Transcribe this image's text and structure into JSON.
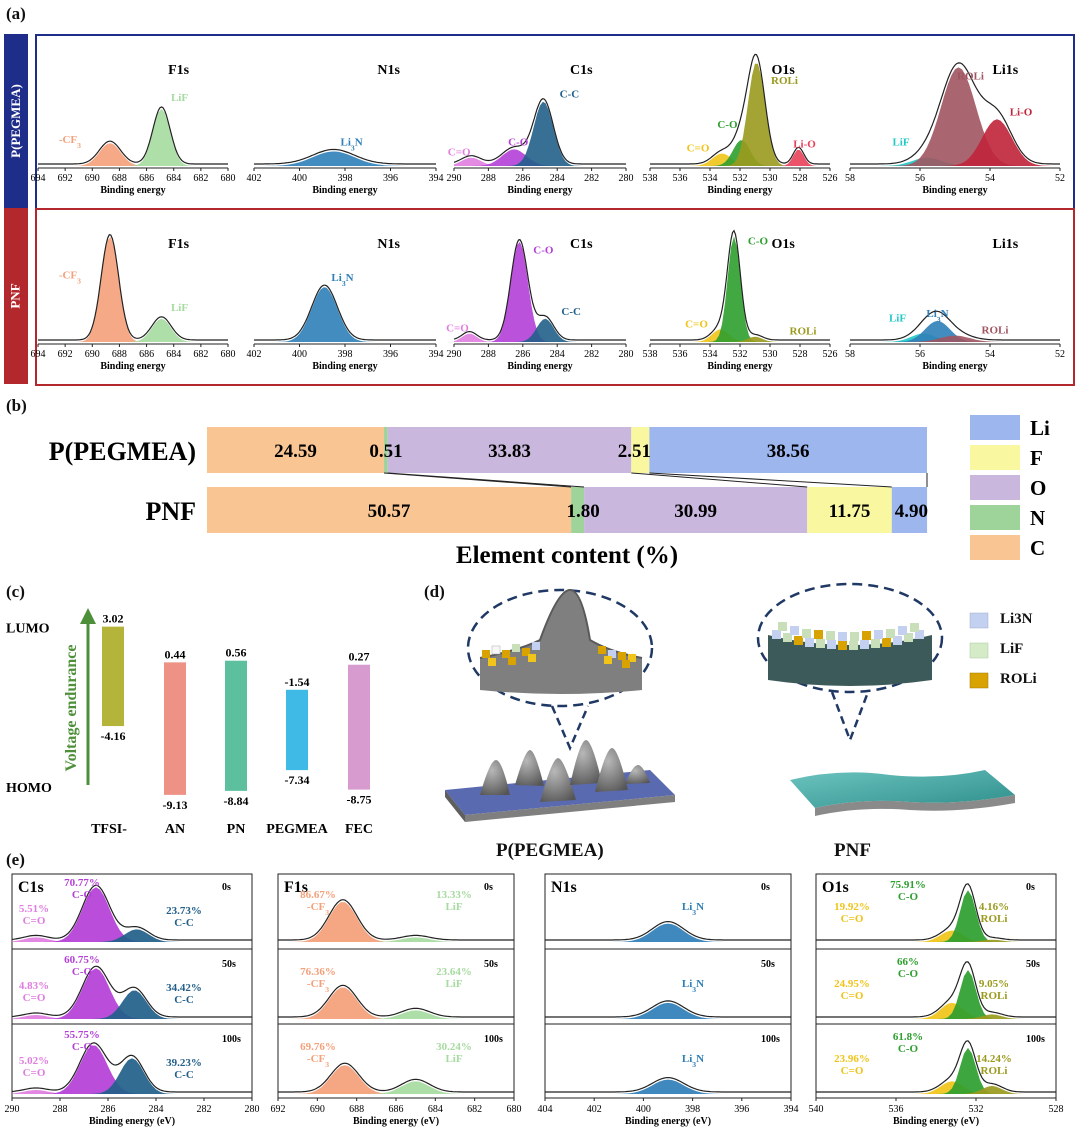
{
  "panels": {
    "a": "(a)",
    "b": "(b)",
    "c": "(c)",
    "d": "(d)",
    "e": "(e)"
  },
  "colors": {
    "blue_frame": "#1f2d8a",
    "red_frame": "#b3282d",
    "cf3": "#f4a07a",
    "lif": "#a6dba0",
    "li3n": "#2f7fb8",
    "c_eq_o": "#e07ee0",
    "c_o": "#b43fd8",
    "c_c": "#215f8a",
    "o_c_o": "#2e9e2e",
    "o_c_eq_o": "#f0c419",
    "o_roli": "#9a9a1e",
    "o_li_o": "#e8405a",
    "li_roli": "#a05560",
    "li_lio": "#c0243a",
    "li_lif": "#20c8c8",
    "c_c_1": "#f5a623",
    "bar_li": "#9db6ee",
    "bar_f": "#f9f7a0",
    "bar_o": "#c9b7dd",
    "bar_n": "#9ed39a",
    "bar_c": "#f9c593"
  },
  "chart_data": [
    {
      "panel": "a",
      "type": "xps",
      "rows": [
        {
          "name": "P(PEGMEA)",
          "spectra": [
            {
              "title": "F1s",
              "xlabel": "Binding energy",
              "ticks": [
                694,
                692,
                690,
                688,
                686,
                684,
                682,
                680
              ],
              "peaks": [
                {
                  "label": "-CF3",
                  "center": 688.7,
                  "height": 0.22,
                  "width": 1.1
                },
                {
                  "label": "LiF",
                  "center": 684.9,
                  "height": 0.55,
                  "width": 0.9
                }
              ]
            },
            {
              "title": "N1s",
              "xlabel": "Binding energy",
              "ticks": [
                402,
                400,
                398,
                396,
                394
              ],
              "peaks": [
                {
                  "label": "Li3N",
                  "center": 398.5,
                  "height": 0.14,
                  "width": 1.3
                }
              ]
            },
            {
              "title": "C1s",
              "xlabel": "Binding energy",
              "ticks": [
                290,
                288,
                286,
                284,
                282,
                280
              ],
              "peaks": [
                {
                  "label": "C=O",
                  "center": 289.0,
                  "height": 0.08,
                  "width": 0.8
                },
                {
                  "label": "C-O",
                  "center": 286.5,
                  "height": 0.16,
                  "width": 1.0
                },
                {
                  "label": "C-C",
                  "center": 284.8,
                  "height": 0.62,
                  "width": 0.8
                }
              ]
            },
            {
              "title": "O1s",
              "xlabel": "Binding energy",
              "ticks": [
                538,
                536,
                534,
                532,
                530,
                528,
                526
              ],
              "peaks": [
                {
                  "label": "C=O",
                  "center": 533.2,
                  "height": 0.12,
                  "width": 0.9
                },
                {
                  "label": "C-O",
                  "center": 531.9,
                  "height": 0.25,
                  "width": 0.8
                },
                {
                  "label": "ROLi",
                  "center": 530.9,
                  "height": 1.0,
                  "width": 0.8
                },
                {
                  "label": "Li-O",
                  "center": 528.1,
                  "height": 0.16,
                  "width": 0.5
                }
              ]
            },
            {
              "title": "Li1s",
              "xlabel": "Binding energy",
              "ticks": [
                58,
                56,
                54,
                52
              ],
              "peaks": [
                {
                  "label": "LiF",
                  "center": 55.8,
                  "height": 0.08,
                  "width": 0.6
                },
                {
                  "label": "ROLi",
                  "center": 54.9,
                  "height": 0.95,
                  "width": 0.7
                },
                {
                  "label": "Li-O",
                  "center": 53.8,
                  "height": 0.45,
                  "width": 0.6
                }
              ]
            }
          ]
        },
        {
          "name": "PNF",
          "spectra": [
            {
              "title": "F1s",
              "xlabel": "Binding energy",
              "ticks": [
                694,
                692,
                690,
                688,
                686,
                684,
                682,
                680
              ],
              "peaks": [
                {
                  "label": "-CF3",
                  "center": 688.7,
                  "height": 1.0,
                  "width": 0.9
                },
                {
                  "label": "LiF",
                  "center": 684.9,
                  "height": 0.22,
                  "width": 1.0
                }
              ]
            },
            {
              "title": "N1s",
              "xlabel": "Binding energy",
              "ticks": [
                402,
                400,
                398,
                396,
                394
              ],
              "peaks": [
                {
                  "label": "Li3N",
                  "center": 398.9,
                  "height": 0.52,
                  "width": 0.8
                }
              ]
            },
            {
              "title": "C1s",
              "xlabel": "Binding energy",
              "ticks": [
                290,
                288,
                286,
                284,
                282,
                280
              ],
              "peaks": [
                {
                  "label": "C=O",
                  "center": 289.1,
                  "height": 0.08,
                  "width": 0.6
                },
                {
                  "label": "C-O",
                  "center": 286.2,
                  "height": 0.95,
                  "width": 0.7
                },
                {
                  "label": "C-C",
                  "center": 284.7,
                  "height": 0.22,
                  "width": 0.7
                }
              ]
            },
            {
              "title": "O1s",
              "xlabel": "Binding energy",
              "ticks": [
                538,
                536,
                534,
                532,
                530,
                528,
                526
              ],
              "peaks": [
                {
                  "label": "C=O",
                  "center": 533.3,
                  "height": 0.12,
                  "width": 0.8
                },
                {
                  "label": "C-O",
                  "center": 532.4,
                  "height": 1.0,
                  "width": 0.6
                },
                {
                  "label": "ROLi",
                  "center": 531.0,
                  "height": 0.05,
                  "width": 0.7
                }
              ]
            },
            {
              "title": "Li1s",
              "xlabel": "Binding energy",
              "ticks": [
                58,
                56,
                54,
                52
              ],
              "peaks": [
                {
                  "label": "LiF",
                  "center": 55.9,
                  "height": 0.08,
                  "width": 0.5
                },
                {
                  "label": "Li3N",
                  "center": 55.5,
                  "height": 0.2,
                  "width": 0.5
                },
                {
                  "label": "ROLi",
                  "center": 55.0,
                  "height": 0.06,
                  "width": 0.6
                }
              ]
            }
          ]
        }
      ]
    },
    {
      "panel": "b",
      "type": "bar",
      "stacked": true,
      "orientation": "horizontal",
      "xlabel": "Element content (%)",
      "categories": [
        "P(PEGMEA)",
        "PNF"
      ],
      "series": [
        {
          "name": "C",
          "values": [
            24.59,
            50.57
          ]
        },
        {
          "name": "N",
          "values": [
            0.51,
            1.8
          ]
        },
        {
          "name": "O",
          "values": [
            33.83,
            30.99
          ]
        },
        {
          "name": "F",
          "values": [
            2.51,
            11.75
          ]
        },
        {
          "name": "Li",
          "values": [
            38.56,
            4.9
          ]
        }
      ],
      "value_labels": [
        [
          "24.59",
          "0.51",
          "33.83",
          "2.51",
          "38.56"
        ],
        [
          "50.57",
          "1.80",
          "30.99",
          "11.75",
          "4.90"
        ]
      ],
      "legend_order": [
        "Li",
        "F",
        "O",
        "N",
        "C"
      ],
      "legend": "right"
    },
    {
      "panel": "c",
      "type": "bar",
      "ylabel_top": "LUMO",
      "ylabel_bottom": "HOMO",
      "arrow_label": "Voltage endurance",
      "categories": [
        "TFSI-",
        "AN",
        "PN",
        "PEGMEA",
        "FEC"
      ],
      "lumo": [
        3.02,
        0.44,
        0.56,
        -1.54,
        0.27
      ],
      "homo": [
        -4.16,
        -9.13,
        -8.84,
        -7.34,
        -8.75
      ],
      "lumo_labels": [
        "3.02",
        "0.44",
        "0.56",
        "-1.54",
        "0.27"
      ],
      "homo_labels": [
        "-4.16",
        "-9.13",
        "-8.84",
        "-7.34",
        "-8.75"
      ],
      "bar_colors": [
        "#b5b43a",
        "#ee9286",
        "#5cbf9e",
        "#3fb9e6",
        "#d79bd0"
      ],
      "ylim": [
        -9.5,
        3.5
      ]
    },
    {
      "panel": "e",
      "type": "xps_depth",
      "xlabel": "Binding energy (eV)",
      "columns": [
        {
          "title": "C1s",
          "ticks": [
            290,
            288,
            286,
            284,
            282,
            280
          ],
          "depths": [
            {
              "time": "0s",
              "peaks": [
                {
                  "label": "C=O",
                  "pct": "5.51%",
                  "center": 289.0,
                  "height": 0.08,
                  "width": 0.7
                },
                {
                  "label": "C-O",
                  "pct": "70.77%",
                  "center": 286.5,
                  "height": 0.95,
                  "width": 0.8
                },
                {
                  "label": "C-C",
                  "pct": "23.73%",
                  "center": 284.8,
                  "height": 0.22,
                  "width": 0.7
                }
              ]
            },
            {
              "time": "50s",
              "peaks": [
                {
                  "label": "C=O",
                  "pct": "4.83%",
                  "center": 289.0,
                  "height": 0.07,
                  "width": 0.7
                },
                {
                  "label": "C-O",
                  "pct": "60.75%",
                  "center": 286.5,
                  "height": 0.88,
                  "width": 0.8
                },
                {
                  "label": "C-C",
                  "pct": "34.42%",
                  "center": 284.9,
                  "height": 0.5,
                  "width": 0.7
                }
              ]
            },
            {
              "time": "100s",
              "peaks": [
                {
                  "label": "C=O",
                  "pct": "5.02%",
                  "center": 289.0,
                  "height": 0.07,
                  "width": 0.7
                },
                {
                  "label": "C-O",
                  "pct": "55.75%",
                  "center": 286.6,
                  "height": 0.85,
                  "width": 0.8
                },
                {
                  "label": "C-C",
                  "pct": "39.23%",
                  "center": 285.0,
                  "height": 0.62,
                  "width": 0.7
                }
              ]
            }
          ]
        },
        {
          "title": "F1s",
          "ticks": [
            692,
            690,
            688,
            686,
            684,
            682,
            680
          ],
          "depths": [
            {
              "time": "0s",
              "peaks": [
                {
                  "label": "-CF3",
                  "pct": "86.67%",
                  "center": 688.7,
                  "height": 0.7,
                  "width": 1.0
                },
                {
                  "label": "LiF",
                  "pct": "13.33%",
                  "center": 685.0,
                  "height": 0.08,
                  "width": 1.0
                }
              ]
            },
            {
              "time": "50s",
              "peaks": [
                {
                  "label": "-CF3",
                  "pct": "76.36%",
                  "center": 688.7,
                  "height": 0.55,
                  "width": 1.0
                },
                {
                  "label": "LiF",
                  "pct": "23.64%",
                  "center": 685.0,
                  "height": 0.15,
                  "width": 1.0
                }
              ]
            },
            {
              "time": "100s",
              "peaks": [
                {
                  "label": "-CF3",
                  "pct": "69.76%",
                  "center": 688.6,
                  "height": 0.5,
                  "width": 1.0
                },
                {
                  "label": "LiF",
                  "pct": "30.24%",
                  "center": 685.0,
                  "height": 0.22,
                  "width": 1.0
                }
              ]
            }
          ]
        },
        {
          "title": "N1s",
          "ticks": [
            404,
            402,
            400,
            398,
            396,
            394
          ],
          "depths": [
            {
              "time": "0s",
              "peaks": [
                {
                  "label": "Li3N",
                  "pct": "",
                  "center": 399.0,
                  "height": 0.32,
                  "width": 0.9
                }
              ]
            },
            {
              "time": "50s",
              "peaks": [
                {
                  "label": "Li3N",
                  "pct": "",
                  "center": 399.0,
                  "height": 0.28,
                  "width": 0.9
                }
              ]
            },
            {
              "time": "100s",
              "peaks": [
                {
                  "label": "Li3N",
                  "pct": "",
                  "center": 399.0,
                  "height": 0.25,
                  "width": 0.9
                }
              ]
            }
          ]
        },
        {
          "title": "O1s",
          "ticks": [
            540,
            536,
            532,
            528
          ],
          "depths": [
            {
              "time": "0s",
              "peaks": [
                {
                  "label": "C=O",
                  "pct": "19.92%",
                  "center": 533.2,
                  "height": 0.2,
                  "width": 0.8
                },
                {
                  "label": "C-O",
                  "pct": "75.91%",
                  "center": 532.4,
                  "height": 0.9,
                  "width": 0.55
                },
                {
                  "label": "ROLi",
                  "pct": "4.16%",
                  "center": 531.2,
                  "height": 0.04,
                  "width": 0.7
                }
              ]
            },
            {
              "time": "50s",
              "peaks": [
                {
                  "label": "C=O",
                  "pct": "24.95%",
                  "center": 533.2,
                  "height": 0.28,
                  "width": 0.8
                },
                {
                  "label": "C-O",
                  "pct": "66%",
                  "center": 532.4,
                  "height": 0.85,
                  "width": 0.55
                },
                {
                  "label": "ROLi",
                  "pct": "9.05%",
                  "center": 531.2,
                  "height": 0.08,
                  "width": 0.7
                }
              ]
            },
            {
              "time": "100s",
              "peaks": [
                {
                  "label": "C=O",
                  "pct": "23.96%",
                  "center": 533.2,
                  "height": 0.22,
                  "width": 0.8
                },
                {
                  "label": "C-O",
                  "pct": "61.8%",
                  "center": 532.4,
                  "height": 0.8,
                  "width": 0.55
                },
                {
                  "label": "ROLi",
                  "pct": "14.24%",
                  "center": 531.2,
                  "height": 0.14,
                  "width": 0.7
                }
              ]
            }
          ]
        }
      ]
    }
  ],
  "panel_d": {
    "left_caption": "P(PEGMEA)",
    "right_caption": "PNF",
    "legend": [
      "Li3N",
      "LiF",
      "ROLi"
    ]
  }
}
